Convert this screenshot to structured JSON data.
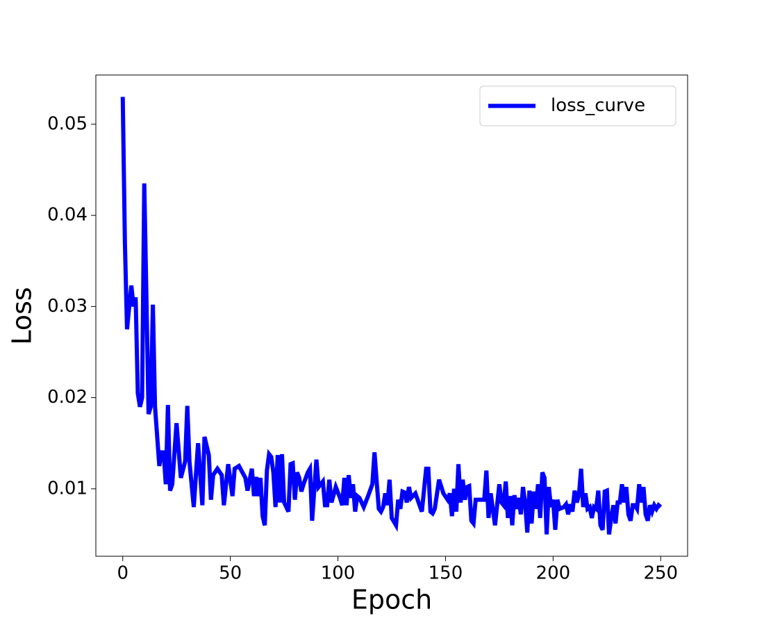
{
  "chart_data": {
    "type": "line",
    "xlabel": "Epoch",
    "ylabel": "Loss",
    "x": [
      0,
      1,
      2,
      3,
      4,
      5,
      6,
      7,
      8,
      9,
      10,
      11,
      12,
      13,
      14,
      15,
      17,
      18,
      19,
      20,
      21,
      22,
      23,
      25,
      27,
      29,
      30,
      31,
      33,
      35,
      37,
      38,
      40,
      41,
      42,
      44,
      46,
      47,
      49,
      51,
      52,
      54,
      57,
      58,
      60,
      61,
      62,
      63,
      64,
      65,
      66,
      67,
      68,
      69,
      70,
      71,
      72,
      73,
      74,
      75,
      77,
      78,
      79,
      80,
      81,
      82,
      83,
      84,
      86,
      87,
      88,
      90,
      91,
      93,
      94,
      95,
      96,
      97,
      99,
      101,
      102,
      103,
      104,
      105,
      106,
      107,
      108,
      109,
      110,
      112,
      114,
      116,
      117,
      118,
      119,
      120,
      121,
      122,
      123,
      124,
      125,
      127,
      128,
      129,
      130,
      131,
      132,
      133,
      134,
      136,
      139,
      141,
      142,
      143,
      144,
      145,
      147,
      149,
      151,
      152,
      153,
      154,
      155,
      156,
      157,
      158,
      159,
      160,
      161,
      162,
      163,
      164,
      166,
      168,
      169,
      170,
      171,
      173,
      175,
      176,
      177,
      178,
      179,
      180,
      181,
      182,
      183,
      184,
      185,
      186,
      187,
      188,
      189,
      190,
      191,
      192,
      193,
      194,
      195,
      196,
      197,
      198,
      199,
      200,
      201,
      202,
      203,
      205,
      206,
      207,
      208,
      209,
      210,
      211,
      212,
      213,
      214,
      215,
      216,
      217,
      218,
      219,
      220,
      221,
      222,
      223,
      224,
      225,
      226,
      227,
      228,
      229,
      230,
      231,
      232,
      233,
      234,
      235,
      236,
      237,
      238,
      239,
      240,
      241,
      242,
      243,
      244,
      245,
      246,
      247,
      248,
      249,
      250
    ],
    "series": [
      {
        "name": "loss_curve",
        "color": "#0000ff",
        "values": [
          0.053,
          0.037,
          0.0275,
          0.03,
          0.0323,
          0.03,
          0.031,
          0.0205,
          0.019,
          0.02,
          0.0435,
          0.031,
          0.0182,
          0.019,
          0.0302,
          0.019,
          0.0125,
          0.014,
          0.014,
          0.0105,
          0.0192,
          0.0098,
          0.0105,
          0.0172,
          0.0112,
          0.013,
          0.0191,
          0.013,
          0.008,
          0.015,
          0.0082,
          0.0157,
          0.0137,
          0.0088,
          0.0115,
          0.0122,
          0.0115,
          0.0082,
          0.0127,
          0.0092,
          0.0122,
          0.0125,
          0.0112,
          0.0098,
          0.0122,
          0.0092,
          0.0113,
          0.0092,
          0.0112,
          0.007,
          0.006,
          0.012,
          0.0138,
          0.0135,
          0.0118,
          0.008,
          0.0137,
          0.0085,
          0.0138,
          0.0085,
          0.0075,
          0.0127,
          0.0128,
          0.0088,
          0.0118,
          0.0112,
          0.0097,
          0.0105,
          0.0118,
          0.0122,
          0.0065,
          0.0132,
          0.0102,
          0.0108,
          0.0082,
          0.0082,
          0.011,
          0.0085,
          0.0102,
          0.009,
          0.0082,
          0.0112,
          0.0082,
          0.0115,
          0.009,
          0.0105,
          0.0075,
          0.0092,
          0.009,
          0.008,
          0.0092,
          0.0105,
          0.014,
          0.0108,
          0.0078,
          0.0075,
          0.008,
          0.0095,
          0.0082,
          0.011,
          0.0068,
          0.006,
          0.0088,
          0.0078,
          0.0097,
          0.0096,
          0.0085,
          0.0102,
          0.009,
          0.0095,
          0.0075,
          0.0122,
          0.0122,
          0.0075,
          0.0073,
          0.0078,
          0.011,
          0.0095,
          0.0088,
          0.0095,
          0.007,
          0.01,
          0.0075,
          0.0127,
          0.0085,
          0.011,
          0.0088,
          0.0102,
          0.0103,
          0.0065,
          0.0062,
          0.0088,
          0.0088,
          0.0088,
          0.012,
          0.0068,
          0.0095,
          0.006,
          0.0105,
          0.0085,
          0.0082,
          0.0108,
          0.0068,
          0.0092,
          0.006,
          0.0093,
          0.0078,
          0.009,
          0.0072,
          0.0102,
          0.0085,
          0.0052,
          0.0098,
          0.0062,
          0.0097,
          0.0078,
          0.0105,
          0.0068,
          0.0118,
          0.0112,
          0.005,
          0.0102,
          0.008,
          0.0088,
          0.0055,
          0.0088,
          0.0078,
          0.008,
          0.0083,
          0.0072,
          0.0083,
          0.0075,
          0.0098,
          0.0085,
          0.0093,
          0.0122,
          0.008,
          0.0095,
          0.0078,
          0.008,
          0.0068,
          0.008,
          0.0078,
          0.0098,
          0.006,
          0.0055,
          0.0097,
          0.0098,
          0.005,
          0.0068,
          0.0082,
          0.0062,
          0.0085,
          0.0085,
          0.0105,
          0.0085,
          0.0102,
          0.0072,
          0.0065,
          0.0082,
          0.0082,
          0.0078,
          0.0105,
          0.0085,
          0.0102,
          0.0072,
          0.0065,
          0.0082,
          0.0075,
          0.0082,
          0.0078,
          0.0082,
          0.008
        ]
      }
    ],
    "xlim": [
      -12.5,
      262.5
    ],
    "ylim": [
      0.0026,
      0.0554
    ],
    "xticks": [
      0,
      50,
      100,
      150,
      200,
      250
    ],
    "yticks": [
      0.01,
      0.02,
      0.03,
      0.04,
      0.05
    ],
    "legend": "upper right"
  }
}
